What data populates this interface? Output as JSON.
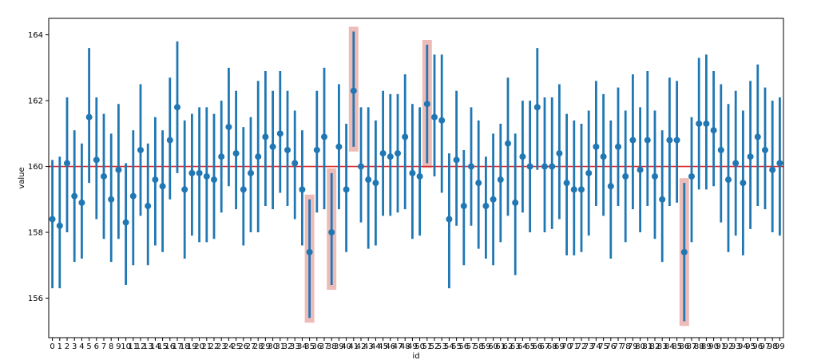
{
  "chart_data": {
    "type": "point-errorbar",
    "xlabel": "id",
    "ylabel": "value",
    "ylim": [
      154.8,
      164.5
    ],
    "yticks": [
      156,
      158,
      160,
      162,
      164
    ],
    "reference_line": {
      "value": 160,
      "color": "#d62728"
    },
    "colors": {
      "series": "#1f77b4",
      "highlight": "#e8a6a0"
    },
    "grid": false,
    "x": [
      0,
      1,
      2,
      3,
      4,
      5,
      6,
      7,
      8,
      9,
      10,
      11,
      12,
      13,
      14,
      15,
      16,
      17,
      18,
      19,
      20,
      21,
      22,
      23,
      24,
      25,
      26,
      27,
      28,
      29,
      30,
      31,
      32,
      33,
      34,
      35,
      36,
      37,
      38,
      39,
      40,
      41,
      42,
      43,
      44,
      45,
      46,
      47,
      48,
      49,
      50,
      51,
      52,
      53,
      54,
      55,
      56,
      57,
      58,
      59,
      60,
      61,
      62,
      63,
      64,
      65,
      66,
      67,
      68,
      69,
      70,
      71,
      72,
      73,
      74,
      75,
      76,
      77,
      78,
      79,
      80,
      81,
      82,
      83,
      84,
      85,
      86,
      87,
      88,
      89,
      90,
      91,
      92,
      93,
      94,
      95,
      96,
      97,
      98,
      99
    ],
    "means": [
      158.4,
      158.2,
      160.1,
      159.1,
      158.9,
      161.5,
      160.2,
      159.7,
      159.0,
      159.9,
      158.3,
      159.1,
      160.5,
      158.8,
      159.6,
      159.4,
      160.8,
      161.8,
      159.3,
      159.8,
      159.8,
      159.7,
      159.6,
      160.3,
      161.2,
      160.4,
      159.3,
      159.8,
      160.3,
      160.9,
      160.6,
      161.0,
      160.5,
      160.1,
      159.3,
      157.4,
      160.5,
      160.9,
      158.0,
      160.6,
      159.3,
      162.3,
      160.0,
      159.6,
      159.5,
      160.4,
      160.3,
      160.4,
      160.9,
      159.8,
      159.7,
      161.9,
      161.5,
      161.4,
      158.4,
      160.2,
      158.8,
      160.0,
      159.5,
      158.8,
      159.0,
      159.6,
      160.7,
      158.9,
      160.3,
      160.0,
      161.8,
      160.0,
      160.0,
      160.4,
      159.5,
      159.3,
      159.3,
      159.8,
      160.6,
      160.3,
      159.4,
      160.6,
      159.7,
      160.8,
      159.9,
      160.8,
      159.7,
      159.0,
      160.8,
      160.8,
      157.4,
      159.7,
      161.3,
      161.3,
      161.1,
      160.5,
      159.6,
      160.1,
      159.5,
      160.3,
      160.9,
      160.5,
      159.9,
      160.1
    ],
    "lower": [
      156.3,
      156.3,
      158.0,
      157.1,
      157.2,
      159.5,
      158.4,
      157.8,
      157.1,
      157.8,
      156.4,
      157.0,
      158.5,
      157.0,
      157.6,
      157.4,
      159.0,
      159.8,
      157.2,
      157.9,
      157.7,
      157.7,
      157.8,
      158.6,
      159.4,
      158.7,
      157.6,
      158.0,
      158.0,
      158.8,
      158.7,
      159.2,
      158.8,
      158.4,
      157.6,
      155.4,
      158.6,
      158.7,
      156.4,
      158.7,
      157.4,
      160.6,
      158.3,
      157.5,
      157.6,
      158.5,
      158.5,
      158.6,
      158.7,
      157.8,
      157.9,
      160.1,
      159.7,
      159.2,
      156.3,
      158.2,
      157.0,
      158.2,
      157.5,
      157.2,
      157.0,
      157.7,
      158.5,
      156.7,
      158.6,
      158.0,
      159.9,
      158.0,
      158.1,
      158.4,
      157.3,
      157.3,
      157.4,
      157.9,
      158.8,
      158.5,
      157.2,
      158.8,
      157.7,
      158.7,
      158.0,
      158.8,
      157.8,
      157.1,
      158.8,
      158.9,
      155.3,
      157.7,
      159.3,
      159.3,
      159.4,
      158.3,
      157.4,
      157.9,
      157.3,
      158.1,
      158.8,
      158.7,
      158.0,
      157.9
    ],
    "upper": [
      160.2,
      160.3,
      162.1,
      161.1,
      160.7,
      163.6,
      162.1,
      161.6,
      161.0,
      161.9,
      160.1,
      161.1,
      162.5,
      160.7,
      161.5,
      161.1,
      162.7,
      163.8,
      161.4,
      161.6,
      161.8,
      161.8,
      161.6,
      162.0,
      163.0,
      162.3,
      161.2,
      161.5,
      162.6,
      162.9,
      162.3,
      162.9,
      162.3,
      161.7,
      161.1,
      159.0,
      162.3,
      163.0,
      159.8,
      162.5,
      161.3,
      164.1,
      161.8,
      161.8,
      161.4,
      162.3,
      162.2,
      162.2,
      162.8,
      161.9,
      161.8,
      163.7,
      163.4,
      163.4,
      160.4,
      162.3,
      160.5,
      161.8,
      161.4,
      160.3,
      161.0,
      161.3,
      162.7,
      161.0,
      162.0,
      162.0,
      163.6,
      162.1,
      162.1,
      162.5,
      161.6,
      161.4,
      161.3,
      161.7,
      162.6,
      162.2,
      161.4,
      162.4,
      161.7,
      162.8,
      161.8,
      162.9,
      161.7,
      161.1,
      162.7,
      162.6,
      159.5,
      161.5,
      163.3,
      163.4,
      162.9,
      162.5,
      161.9,
      162.3,
      161.7,
      162.6,
      163.1,
      162.4,
      162.0,
      162.1
    ],
    "highlighted_ids": [
      35,
      38,
      41,
      51,
      86
    ]
  }
}
